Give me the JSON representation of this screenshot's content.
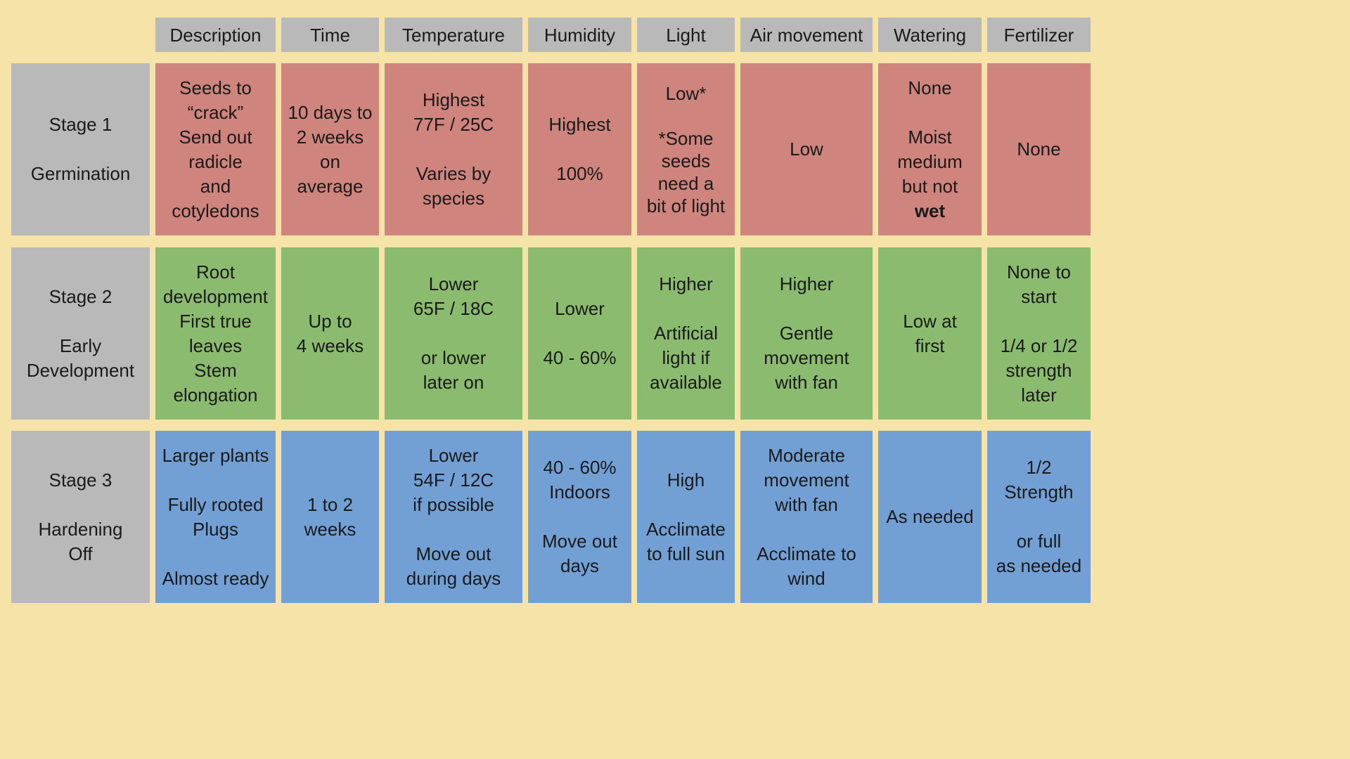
{
  "colors": {
    "background": "#f5e3a7",
    "header": "#b9b9b9",
    "stage1": "#cf847d",
    "stage2": "#8bbb6e",
    "stage3": "#72a0d4"
  },
  "columns": [
    "Description",
    "Time",
    "Temperature",
    "Humidity",
    "Light",
    "Air movement",
    "Watering",
    "Fertilizer"
  ],
  "rows": [
    {
      "stage": "Stage 1\n\nGermination",
      "description": "Seeds to\n“crack”\nSend out\nradicle\nand\ncotyledons",
      "time": "10 days to\n2 weeks\non\naverage",
      "temperature": "Highest\n77F / 25C\n\nVaries by\nspecies",
      "humidity": "Highest\n\n100%",
      "light": "Low*\n\n*Some\nseeds\nneed a\nbit of light",
      "air": "Low",
      "watering_main": "None\n\nMoist\nmedium\nbut not",
      "watering_bold": "wet",
      "fertilizer": "None"
    },
    {
      "stage": "Stage 2\n\nEarly\nDevelopment",
      "description": "Root\ndevelopment\nFirst true\nleaves\nStem\nelongation",
      "time": "Up to\n4 weeks",
      "temperature": "Lower\n65F / 18C\n\nor lower\nlater on",
      "humidity": "Lower\n\n40 - 60%",
      "light": "Higher\n\nArtificial\nlight if\navailable",
      "air": "Higher\n\nGentle\nmovement\nwith fan",
      "watering": "Low at\nfirst",
      "fertilizer": "None to\nstart\n\n1/4 or 1/2\nstrength\nlater"
    },
    {
      "stage": "Stage 3\n\nHardening\nOff",
      "description": "Larger plants\n\nFully rooted\nPlugs\n\nAlmost ready",
      "time": "1 to 2\nweeks",
      "temperature": "Lower\n54F / 12C\nif possible\n\nMove out\nduring days",
      "humidity": "40 - 60%\nIndoors\n\nMove out\ndays",
      "light": "High\n\nAcclimate\nto full sun",
      "air": "Moderate\nmovement\nwith fan\n\nAcclimate to\nwind",
      "watering": "As needed",
      "fertilizer": "1/2\nStrength\n\nor full\nas needed"
    }
  ]
}
